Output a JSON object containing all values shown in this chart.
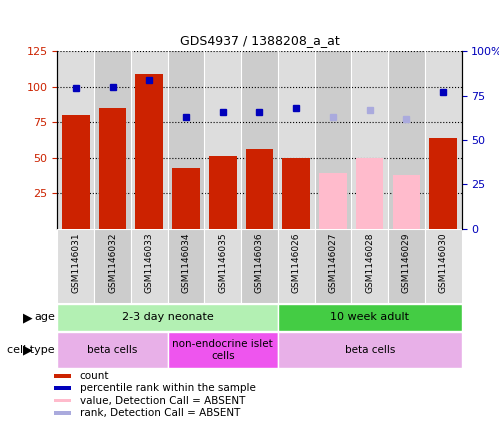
{
  "title": "GDS4937 / 1388208_a_at",
  "samples": [
    "GSM1146031",
    "GSM1146032",
    "GSM1146033",
    "GSM1146034",
    "GSM1146035",
    "GSM1146036",
    "GSM1146026",
    "GSM1146027",
    "GSM1146028",
    "GSM1146029",
    "GSM1146030"
  ],
  "count_values": [
    80,
    85,
    109,
    43,
    51,
    56,
    50,
    null,
    null,
    null,
    64
  ],
  "count_absent": [
    null,
    null,
    null,
    null,
    null,
    null,
    null,
    39,
    50,
    38,
    null
  ],
  "rank_present": [
    79,
    80,
    84,
    63,
    66,
    66,
    68,
    null,
    null,
    null,
    77
  ],
  "rank_absent": [
    null,
    null,
    null,
    null,
    null,
    null,
    null,
    63,
    67,
    62,
    null
  ],
  "ylim_left": [
    0,
    125
  ],
  "ylim_right": [
    0,
    100
  ],
  "yticks_left": [
    25,
    50,
    75,
    100,
    125
  ],
  "ytick_labels_left": [
    "25",
    "50",
    "75",
    "100",
    "125"
  ],
  "yticks_right_pct": [
    0,
    25,
    50,
    75,
    100
  ],
  "ytick_labels_right": [
    "0",
    "25",
    "50",
    "75",
    "100%"
  ],
  "age_groups": [
    {
      "label": "2-3 day neonate",
      "start": 0,
      "end": 6,
      "color": "#b3f0b3"
    },
    {
      "label": "10 week adult",
      "start": 6,
      "end": 11,
      "color": "#44cc44"
    }
  ],
  "cell_groups": [
    {
      "label": "beta cells",
      "start": 0,
      "end": 3,
      "color": "#e8b0e8"
    },
    {
      "label": "non-endocrine islet\ncells",
      "start": 3,
      "end": 6,
      "color": "#ee55ee"
    },
    {
      "label": "beta cells",
      "start": 6,
      "end": 11,
      "color": "#e8b0e8"
    }
  ],
  "bar_color_red": "#cc2200",
  "bar_color_pink": "#ffbbcc",
  "dot_color_blue": "#0000bb",
  "dot_color_lightblue": "#aaaadd",
  "legend_items": [
    {
      "label": "count",
      "color": "#cc2200"
    },
    {
      "label": "percentile rank within the sample",
      "color": "#0000bb"
    },
    {
      "label": "value, Detection Call = ABSENT",
      "color": "#ffbbcc"
    },
    {
      "label": "rank, Detection Call = ABSENT",
      "color": "#aaaadd"
    }
  ],
  "plot_bg": "#d8d8d8",
  "col_bg_even": "#dddddd",
  "col_bg_odd": "#cccccc"
}
